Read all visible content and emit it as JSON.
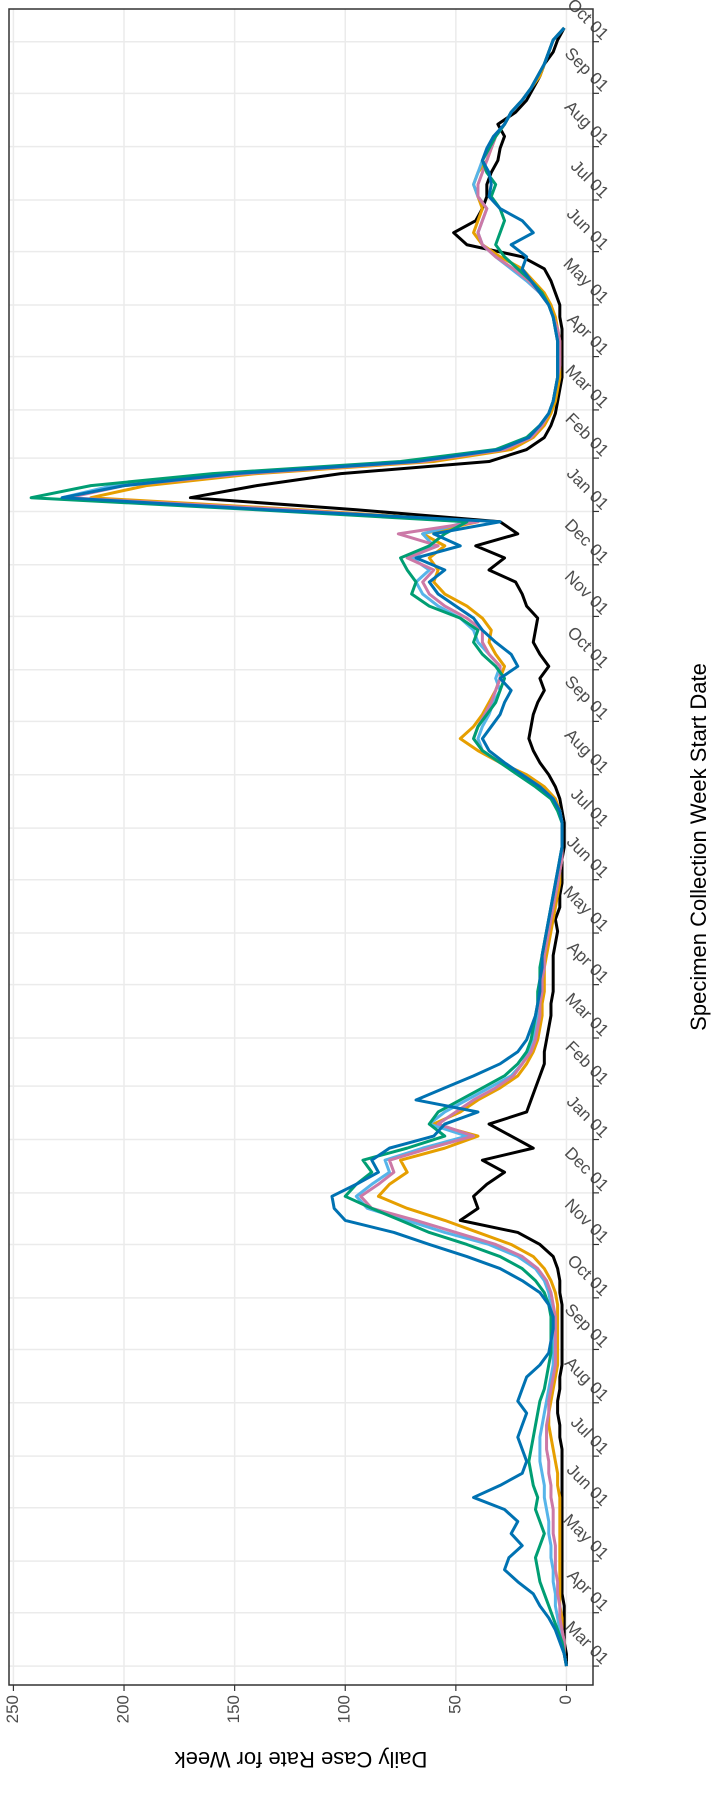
{
  "chart_data": {
    "type": "line",
    "x_label": "Specimen Collection Week Start Date",
    "y_label": "Daily Case Rate for Week",
    "xlim": [
      -11,
      963
    ],
    "ylim": [
      -12,
      252
    ],
    "yticks": [
      0,
      50,
      100,
      150,
      200,
      250
    ],
    "xticks": [
      {
        "value": 0,
        "label": "Mar 01"
      },
      {
        "value": 31,
        "label": "Apr 01"
      },
      {
        "value": 61,
        "label": "May 01"
      },
      {
        "value": 92,
        "label": "Jun 01"
      },
      {
        "value": 122,
        "label": "Jul 01"
      },
      {
        "value": 153,
        "label": "Aug 01"
      },
      {
        "value": 184,
        "label": "Sep 01"
      },
      {
        "value": 214,
        "label": "Oct 01"
      },
      {
        "value": 245,
        "label": "Nov 01"
      },
      {
        "value": 275,
        "label": "Dec 01"
      },
      {
        "value": 306,
        "label": "Jan 01"
      },
      {
        "value": 337,
        "label": "Feb 01"
      },
      {
        "value": 365,
        "label": "Mar 01"
      },
      {
        "value": 396,
        "label": "Apr 01"
      },
      {
        "value": 426,
        "label": "May 01"
      },
      {
        "value": 457,
        "label": "Jun 01"
      },
      {
        "value": 487,
        "label": "Jul 01"
      },
      {
        "value": 518,
        "label": "Aug 01"
      },
      {
        "value": 549,
        "label": "Sep 01"
      },
      {
        "value": 579,
        "label": "Oct 01"
      },
      {
        "value": 610,
        "label": "Nov 01"
      },
      {
        "value": 640,
        "label": "Dec 01"
      },
      {
        "value": 671,
        "label": "Jan 01"
      },
      {
        "value": 702,
        "label": "Feb 01"
      },
      {
        "value": 730,
        "label": "Mar 01"
      },
      {
        "value": 761,
        "label": "Apr 01"
      },
      {
        "value": 791,
        "label": "May 01"
      },
      {
        "value": 822,
        "label": "Jun 01"
      },
      {
        "value": 852,
        "label": "Jul 01"
      },
      {
        "value": 883,
        "label": "Aug 01"
      },
      {
        "value": 914,
        "label": "Sep 01"
      },
      {
        "value": 944,
        "label": "Oct 01"
      }
    ],
    "grid": true,
    "x": [
      0,
      7,
      14,
      21,
      28,
      35,
      42,
      49,
      56,
      63,
      70,
      77,
      84,
      91,
      98,
      105,
      112,
      119,
      126,
      133,
      140,
      147,
      154,
      161,
      168,
      175,
      182,
      189,
      196,
      203,
      210,
      217,
      224,
      231,
      238,
      245,
      252,
      259,
      266,
      273,
      280,
      287,
      294,
      301,
      308,
      315,
      322,
      329,
      336,
      343,
      350,
      357,
      364,
      371,
      378,
      385,
      392,
      399,
      406,
      413,
      420,
      427,
      434,
      441,
      448,
      455,
      462,
      469,
      476,
      483,
      490,
      497,
      504,
      511,
      518,
      525,
      532,
      539,
      546,
      553,
      560,
      567,
      574,
      581,
      588,
      595,
      602,
      609,
      616,
      623,
      630,
      637,
      644,
      651,
      658,
      665,
      672,
      679,
      686,
      693,
      700,
      707,
      714,
      721,
      728,
      735,
      742,
      749,
      756,
      763,
      770,
      777,
      784,
      791,
      798,
      805,
      812,
      819,
      826,
      833,
      840,
      847,
      854,
      861,
      868,
      875,
      882,
      889,
      896,
      903,
      910,
      917,
      924,
      931,
      938,
      945,
      952
    ],
    "series": [
      {
        "color": "#000000",
        "values": [
          0,
          0,
          1,
          1,
          1,
          1,
          2,
          2,
          2,
          2,
          2,
          2,
          2,
          2,
          2,
          2,
          2,
          2,
          2,
          3,
          3,
          4,
          4,
          3,
          3,
          2,
          2,
          2,
          2,
          2,
          2,
          3,
          3,
          4,
          6,
          12,
          22,
          48,
          40,
          42,
          36,
          28,
          38,
          15,
          25,
          35,
          18,
          16,
          14,
          12,
          10,
          10,
          9,
          8,
          7,
          7,
          6,
          6,
          6,
          6,
          5,
          4,
          5,
          3,
          3,
          2,
          2,
          2,
          1,
          1,
          1,
          2,
          3,
          5,
          8,
          12,
          15,
          17,
          16,
          15,
          13,
          10,
          12,
          8,
          12,
          15,
          14,
          13,
          18,
          20,
          23,
          35,
          28,
          41,
          22,
          30,
          95,
          170,
          140,
          102,
          35,
          18,
          10,
          7,
          5,
          4,
          3,
          2,
          2,
          2,
          2,
          2,
          3,
          3,
          5,
          7,
          10,
          20,
          45,
          51,
          41,
          38,
          36,
          36,
          34,
          31,
          30,
          28,
          31,
          23,
          18,
          15,
          12,
          10,
          6,
          4,
          1
        ]
      },
      {
        "color": "#E69F00",
        "values": [
          0,
          1,
          1,
          2,
          2,
          3,
          3,
          3,
          3,
          3,
          3,
          3,
          3,
          3,
          3,
          4,
          4,
          5,
          6,
          7,
          8,
          8,
          7,
          6,
          5,
          4,
          4,
          4,
          4,
          4,
          4,
          5,
          7,
          10,
          15,
          25,
          40,
          55,
          72,
          85,
          80,
          72,
          75,
          55,
          40,
          60,
          48,
          40,
          30,
          22,
          18,
          15,
          13,
          12,
          11,
          11,
          10,
          10,
          10,
          9,
          8,
          7,
          6,
          5,
          4,
          3,
          3,
          2,
          2,
          2,
          2,
          3,
          5,
          10,
          18,
          30,
          40,
          48,
          42,
          38,
          35,
          32,
          30,
          28,
          32,
          35,
          34,
          38,
          45,
          55,
          60,
          58,
          62,
          55,
          65,
          40,
          120,
          215,
          190,
          140,
          60,
          25,
          15,
          10,
          7,
          5,
          4,
          3,
          3,
          3,
          3,
          4,
          5,
          7,
          10,
          15,
          20,
          30,
          38,
          42,
          40,
          38,
          40,
          42,
          40,
          36,
          34,
          32,
          28,
          25,
          20,
          16,
          12,
          10,
          8,
          6,
          1
        ]
      },
      {
        "color": "#56B4E9",
        "values": [
          0,
          1,
          2,
          3,
          4,
          5,
          5,
          6,
          6,
          7,
          7,
          8,
          8,
          9,
          10,
          10,
          11,
          12,
          12,
          12,
          11,
          10,
          9,
          8,
          7,
          6,
          6,
          6,
          6,
          6,
          7,
          8,
          10,
          14,
          22,
          35,
          55,
          72,
          90,
          95,
          88,
          80,
          82,
          65,
          45,
          62,
          55,
          45,
          35,
          25,
          20,
          17,
          15,
          14,
          13,
          12,
          12,
          12,
          11,
          11,
          10,
          9,
          8,
          7,
          5,
          4,
          3,
          3,
          2,
          2,
          2,
          3,
          6,
          12,
          20,
          30,
          38,
          40,
          38,
          35,
          33,
          30,
          32,
          30,
          35,
          40,
          42,
          48,
          58,
          65,
          68,
          62,
          70,
          60,
          65,
          45,
          130,
          228,
          205,
          150,
          70,
          30,
          17,
          12,
          8,
          6,
          5,
          4,
          4,
          4,
          4,
          5,
          6,
          8,
          12,
          18,
          25,
          32,
          38,
          40,
          38,
          36,
          40,
          42,
          40,
          38,
          35,
          32,
          28,
          25,
          20,
          16,
          13,
          10,
          8,
          6,
          1
        ]
      },
      {
        "color": "#CC79A7",
        "values": [
          0,
          1,
          1,
          2,
          3,
          3,
          4,
          4,
          5,
          5,
          5,
          6,
          6,
          6,
          7,
          7,
          8,
          8,
          9,
          9,
          9,
          8,
          8,
          7,
          6,
          5,
          5,
          5,
          5,
          5,
          6,
          7,
          9,
          13,
          20,
          32,
          50,
          68,
          88,
          93,
          85,
          78,
          80,
          62,
          42,
          58,
          50,
          42,
          32,
          24,
          20,
          16,
          14,
          13,
          12,
          12,
          11,
          11,
          10,
          10,
          9,
          8,
          7,
          6,
          5,
          4,
          3,
          2,
          2,
          2,
          2,
          3,
          6,
          12,
          20,
          30,
          38,
          42,
          40,
          37,
          34,
          32,
          30,
          30,
          35,
          38,
          38,
          45,
          55,
          62,
          65,
          60,
          72,
          58,
          76,
          40,
          125,
          225,
          200,
          145,
          65,
          28,
          16,
          11,
          8,
          6,
          5,
          4,
          3,
          3,
          3,
          4,
          6,
          8,
          12,
          17,
          24,
          32,
          38,
          40,
          38,
          36,
          40,
          40,
          38,
          36,
          34,
          32,
          28,
          25,
          20,
          16,
          13,
          10,
          8,
          6,
          1
        ]
      },
      {
        "color": "#009E73",
        "values": [
          0,
          1,
          2,
          4,
          6,
          8,
          10,
          12,
          13,
          14,
          12,
          10,
          12,
          14,
          13,
          15,
          16,
          17,
          16,
          15,
          14,
          13,
          12,
          10,
          9,
          8,
          7,
          7,
          7,
          7,
          8,
          10,
          14,
          20,
          30,
          45,
          62,
          75,
          88,
          100,
          95,
          88,
          92,
          72,
          55,
          62,
          58,
          48,
          38,
          28,
          22,
          18,
          16,
          15,
          14,
          13,
          13,
          12,
          12,
          11,
          10,
          9,
          8,
          7,
          6,
          5,
          4,
          3,
          2,
          2,
          2,
          4,
          7,
          14,
          22,
          30,
          38,
          42,
          40,
          36,
          32,
          30,
          28,
          32,
          38,
          42,
          40,
          48,
          62,
          70,
          68,
          72,
          75,
          62,
          55,
          45,
          140,
          242,
          215,
          160,
          75,
          32,
          18,
          12,
          8,
          6,
          5,
          4,
          4,
          4,
          4,
          5,
          6,
          8,
          11,
          16,
          22,
          28,
          32,
          30,
          28,
          30,
          34,
          32,
          36,
          38,
          35,
          32,
          28,
          25,
          20,
          16,
          13,
          10,
          8,
          6,
          1
        ]
      },
      {
        "color": "#0072B2",
        "values": [
          0,
          1,
          3,
          5,
          8,
          12,
          15,
          22,
          28,
          26,
          20,
          25,
          22,
          28,
          42,
          30,
          20,
          18,
          20,
          22,
          20,
          18,
          22,
          20,
          18,
          12,
          8,
          7,
          6,
          6,
          8,
          12,
          20,
          30,
          45,
          62,
          78,
          100,
          105,
          106,
          95,
          85,
          88,
          80,
          60,
          55,
          40,
          68,
          55,
          42,
          30,
          22,
          18,
          16,
          14,
          13,
          12,
          12,
          11,
          11,
          10,
          9,
          8,
          7,
          6,
          5,
          4,
          3,
          2,
          2,
          2,
          3,
          6,
          12,
          20,
          28,
          35,
          38,
          34,
          30,
          28,
          25,
          30,
          22,
          25,
          32,
          38,
          42,
          50,
          58,
          62,
          55,
          68,
          48,
          60,
          30,
          135,
          228,
          200,
          150,
          68,
          30,
          17,
          12,
          8,
          6,
          5,
          4,
          4,
          4,
          4,
          5,
          6,
          8,
          12,
          16,
          20,
          18,
          25,
          15,
          20,
          30,
          35,
          34,
          35,
          38,
          36,
          33,
          28,
          25,
          20,
          16,
          13,
          10,
          8,
          6,
          1
        ]
      }
    ]
  }
}
